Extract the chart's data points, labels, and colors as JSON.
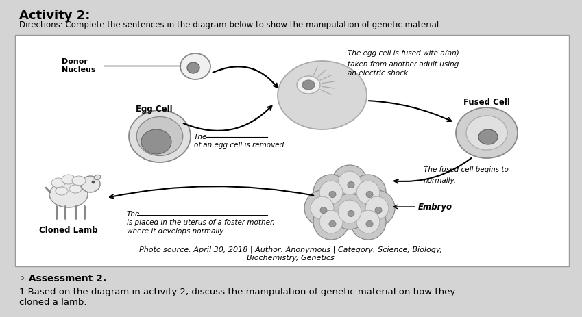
{
  "title": "Activity 2:",
  "subtitle": "Directions: Complete the sentences in the diagram below to show the manipulation of genetic material.",
  "photo_source": "Photo source: April 30, 2018 | Author: Anonymous | Category: Science, Biology,\nBiochemistry, Genetics",
  "assessment_title": "◦ Assessment 2.",
  "assessment_body": "1.Based on the diagram in activity 2, discuss the manipulation of genetic material on how they\ncloned a lamb.",
  "bg_color": "#d4d4d4",
  "diagram_bg": "#ffffff",
  "labels": {
    "donor_nucleus": "Donor\nNucleus",
    "egg_cell": "Egg Cell",
    "fused_cell": "Fused Cell",
    "embryo": "Embryo",
    "cloned_lamb": "Cloned Lamb",
    "top_right_text1": "The egg cell is fused with a(an)",
    "top_right_text2": "taken from another adult using",
    "top_right_text3": "an electric shock.",
    "middle_right_text1": "The fused cell begins to",
    "middle_right_text2": "normally.",
    "egg_cell_text1": "The",
    "egg_cell_text2": "of an egg cell is removed.",
    "bottom_left_text1": "The",
    "bottom_left_text2": "is placed in the uterus of a foster mother,",
    "bottom_left_text3": "where it develops normally."
  }
}
